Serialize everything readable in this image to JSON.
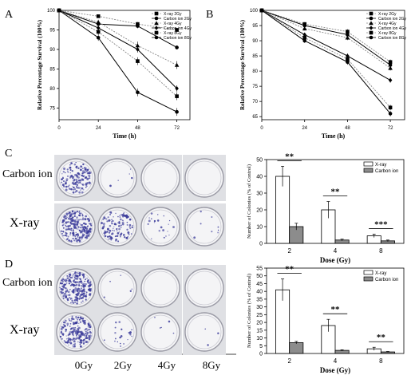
{
  "panel_letters": {
    "a": "A",
    "b": "B",
    "c": "C",
    "d": "D"
  },
  "row_labels": {
    "carbon": "Carbon ion",
    "xray": "X-ray"
  },
  "dish_labels": [
    "0Gy",
    "2Gy",
    "4Gy",
    "8Gy"
  ],
  "colors": {
    "xray_bar": "#ffffff",
    "carbon_bar": "#8c8c8c",
    "stain": "#3b3b9a",
    "dish_bg": "#f4f4f6"
  },
  "dish_density": {
    "C": {
      "carbon": [
        0.55,
        0.02,
        0.0,
        0.0
      ],
      "xray": [
        0.95,
        0.45,
        0.08,
        0.03
      ]
    },
    "D": {
      "carbon": [
        0.9,
        0.02,
        0.0,
        0.0
      ],
      "xray": [
        0.8,
        0.08,
        0.02,
        0.01
      ]
    }
  },
  "chart_data": [
    {
      "panel": "A",
      "type": "line",
      "xlabel": "Time (h)",
      "ylabel": "Relative Percentage Survival (100%)",
      "x": [
        0,
        24,
        48,
        72
      ],
      "xlim": [
        0,
        80
      ],
      "ylim": [
        72,
        100
      ],
      "xticks": [
        "0",
        "24",
        "48",
        "72"
      ],
      "yticks": [
        "75",
        "80",
        "85",
        "90",
        "95",
        "100"
      ],
      "legend_position": "top-right",
      "series": [
        {
          "name": "X-ray 2Gy",
          "values": [
            100,
            98.5,
            96.5,
            95
          ],
          "err": [
            0,
            0.4,
            0.5,
            0.5
          ],
          "dashed": true
        },
        {
          "name": "Carbon ion 2Gy",
          "values": [
            100,
            96.5,
            96,
            90.5
          ],
          "err": [
            0,
            0.5,
            0.6,
            0.5
          ],
          "dashed": false
        },
        {
          "name": "X-ray 4Gy",
          "values": [
            100,
            97,
            91,
            86
          ],
          "err": [
            0,
            0.6,
            1.0,
            1.0
          ],
          "dashed": true
        },
        {
          "name": "Carbon ion 4Gy",
          "values": [
            100,
            95.5,
            90,
            80
          ],
          "err": [
            0,
            0.6,
            0.8,
            0.8
          ],
          "dashed": false
        },
        {
          "name": "X-ray 8Gy",
          "values": [
            100,
            94.5,
            87,
            78
          ],
          "err": [
            0,
            0.8,
            1.0,
            1.0
          ],
          "dashed": true
        },
        {
          "name": "Carbon ion 8Gy",
          "values": [
            100,
            93,
            79,
            74
          ],
          "err": [
            0,
            0.8,
            1.0,
            1.0
          ],
          "dashed": false
        }
      ]
    },
    {
      "panel": "B",
      "type": "line",
      "xlabel": "Time (h)",
      "ylabel": "Relative Percentage Survival (100%)",
      "x": [
        0,
        24,
        48,
        72
      ],
      "xlim": [
        0,
        80
      ],
      "ylim": [
        64,
        100
      ],
      "xticks": [
        "0",
        "24",
        "48",
        "72"
      ],
      "yticks": [
        "65",
        "70",
        "75",
        "80",
        "85",
        "90",
        "95",
        "100"
      ],
      "legend_position": "top-right",
      "series": [
        {
          "name": "X-ray 2Gy",
          "values": [
            100,
            95.5,
            93,
            83
          ],
          "err": [
            0,
            0.6,
            0.8,
            0.8
          ],
          "dashed": true
        },
        {
          "name": "Carbon ion 2Gy",
          "values": [
            100,
            95,
            92,
            82
          ],
          "err": [
            0,
            0.6,
            0.8,
            0.8
          ],
          "dashed": false
        },
        {
          "name": "X-ray 4Gy",
          "values": [
            100,
            94,
            91,
            81
          ],
          "err": [
            0,
            0.6,
            0.8,
            0.8
          ],
          "dashed": true
        },
        {
          "name": "Carbon ion 4Gy",
          "values": [
            100,
            92,
            85,
            77
          ],
          "err": [
            0,
            0.6,
            0.8,
            0.8
          ],
          "dashed": false
        },
        {
          "name": "X-ray 8Gy",
          "values": [
            100,
            91,
            84,
            68
          ],
          "err": [
            0,
            0.7,
            0.9,
            0.9
          ],
          "dashed": true
        },
        {
          "name": "Carbon ion 8Gy",
          "values": [
            100,
            90,
            83,
            66
          ],
          "err": [
            0,
            0.7,
            0.9,
            0.9
          ],
          "dashed": false
        }
      ]
    },
    {
      "panel": "C",
      "type": "bar",
      "xlabel": "Dose (Gy)",
      "ylabel": "Number of Colonies (% of Control)",
      "categories": [
        "2",
        "4",
        "8"
      ],
      "ylim": [
        0,
        50
      ],
      "yticks": [
        "0",
        "10",
        "20",
        "30",
        "40",
        "50"
      ],
      "legend_position": "top-right",
      "series": [
        {
          "name": "X-ray",
          "values": [
            40,
            20,
            4.5
          ],
          "err": [
            6,
            5,
            1
          ]
        },
        {
          "name": "Carbon ion",
          "values": [
            10,
            2,
            1.5
          ],
          "err": [
            2,
            0.5,
            0.5
          ]
        }
      ],
      "significance": [
        "**",
        "**",
        "***"
      ]
    },
    {
      "panel": "D",
      "type": "bar",
      "xlabel": "Dose (Gy)",
      "ylabel": "Number of Colonies (% of Control)",
      "categories": [
        "2",
        "4",
        "8"
      ],
      "ylim": [
        0,
        55
      ],
      "yticks": [
        "0",
        "5",
        "10",
        "15",
        "20",
        "25",
        "30",
        "35",
        "40",
        "45",
        "50",
        "55"
      ],
      "legend_position": "top-right",
      "series": [
        {
          "name": "X-ray",
          "values": [
            41,
            18,
            3
          ],
          "err": [
            7,
            4,
            1
          ]
        },
        {
          "name": "Carbon ion",
          "values": [
            7,
            2,
            1
          ],
          "err": [
            0.8,
            0.4,
            0.3
          ]
        }
      ],
      "significance": [
        "**",
        "**",
        "**"
      ]
    }
  ]
}
